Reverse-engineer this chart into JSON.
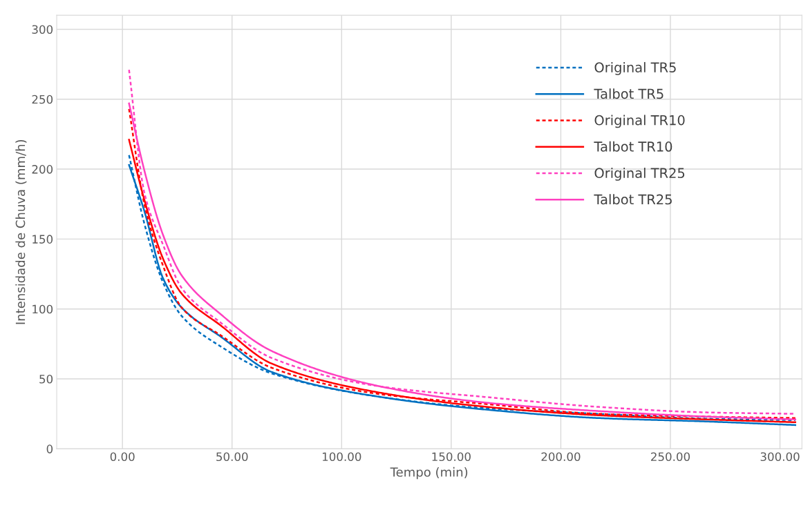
{
  "chart_data": {
    "type": "line",
    "xlabel": "Tempo (min)",
    "ylabel": "Intensidade de Chuva (mm/h)",
    "x": [
      3,
      10,
      18.5,
      27,
      45,
      68,
      118,
      166,
      217,
      267,
      307
    ],
    "series": [
      {
        "name": "Original TR5",
        "color": "#0070c0",
        "line_style": "dashed",
        "values": [
          210,
          161,
          119,
          95,
          73,
          54,
          37,
          29,
          25,
          21.5,
          20.5
        ]
      },
      {
        "name": "Talbot TR5",
        "color": "#0070c0",
        "line_style": "solid",
        "values": [
          203,
          170,
          122,
          101,
          80,
          55,
          37,
          28,
          22,
          19.5,
          17
        ]
      },
      {
        "name": "Original TR10",
        "color": "#ff0000",
        "line_style": "dashed",
        "values": [
          243,
          175,
          131,
          101,
          81,
          58,
          39,
          32,
          25,
          23,
          22
        ]
      },
      {
        "name": "Talbot TR10",
        "color": "#ff0000",
        "line_style": "solid",
        "values": [
          221,
          178,
          136,
          111,
          88,
          61,
          40,
          30,
          24,
          21,
          19
        ]
      },
      {
        "name": "Original TR25",
        "color": "#ff40c0",
        "line_style": "dashed",
        "values": [
          271,
          183,
          146,
          115,
          90,
          65,
          44.5,
          37,
          30,
          26,
          25
        ]
      },
      {
        "name": "Talbot TR25",
        "color": "#ff40c0",
        "line_style": "solid",
        "values": [
          247,
          199,
          153,
          124,
          96,
          70,
          44.5,
          33,
          27,
          23,
          21
        ]
      }
    ],
    "xlim": [
      -30,
      310
    ],
    "ylim": [
      0,
      310
    ],
    "xticks": [
      {
        "value": 0,
        "label": "0.00"
      },
      {
        "value": 50,
        "label": "50.00"
      },
      {
        "value": 100,
        "label": "100.00"
      },
      {
        "value": 150,
        "label": "150.00"
      },
      {
        "value": 200,
        "label": "200.00"
      },
      {
        "value": 250,
        "label": "250.00"
      },
      {
        "value": 300,
        "label": "300.00"
      }
    ],
    "yticks": [
      0,
      50,
      100,
      150,
      200,
      250,
      300
    ],
    "grid": true,
    "legend": "top right",
    "marker": "none"
  }
}
